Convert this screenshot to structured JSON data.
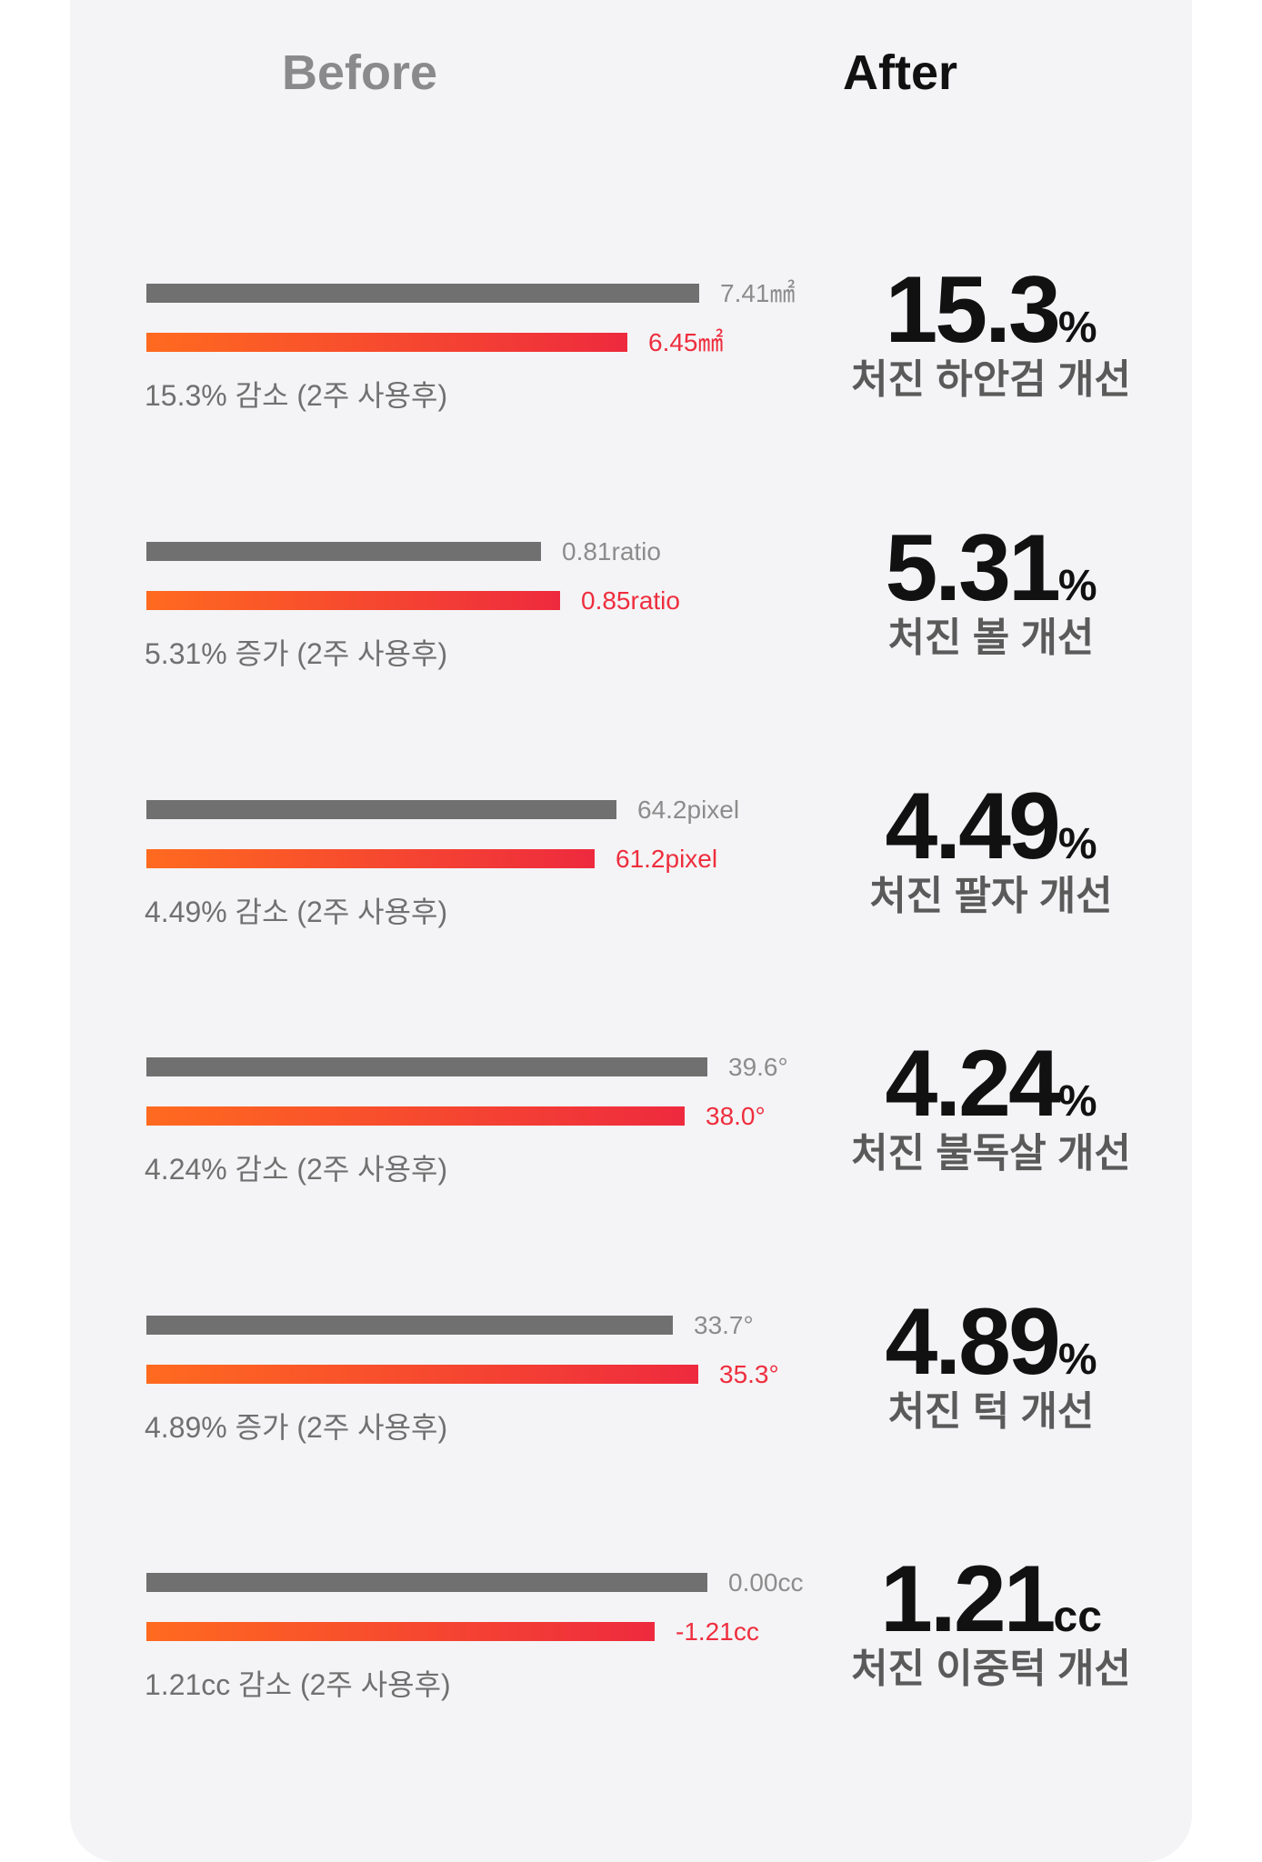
{
  "headers": {
    "before": "Before",
    "after": "After"
  },
  "colors": {
    "before_bar": "#707070",
    "after_bar_start": "#ff6a1f",
    "after_bar_end": "#ee2a3e",
    "after_value_text": "#ee2e3e"
  },
  "chart_data": {
    "type": "bar",
    "title": "",
    "rows": [
      {
        "before": 7.41,
        "after": 6.45,
        "before_label": "7.41㎟",
        "after_label": "6.45㎟",
        "caption": "15.3% 감소 (2주 사용후)",
        "big_value": "15.3",
        "big_unit": "%",
        "label": "처진 하안검 개선"
      },
      {
        "before": 0.81,
        "after": 0.85,
        "before_label": "0.81ratio",
        "after_label": "0.85ratio",
        "caption": "5.31% 증가 (2주 사용후)",
        "big_value": "5.31",
        "big_unit": "%",
        "label": "처진 볼 개선"
      },
      {
        "before": 64.2,
        "after": 61.2,
        "before_label": "64.2pixel",
        "after_label": "61.2pixel",
        "caption": "4.49% 감소 (2주 사용후)",
        "big_value": "4.49",
        "big_unit": "%",
        "label": "처진 팔자 개선"
      },
      {
        "before": 39.6,
        "after": 38.0,
        "before_label": "39.6°",
        "after_label": "38.0°",
        "caption": "4.24% 감소 (2주 사용후)",
        "big_value": "4.24",
        "big_unit": "%",
        "label": "처진 불독살 개선"
      },
      {
        "before": 33.7,
        "after": 35.3,
        "before_label": "33.7°",
        "after_label": "35.3°",
        "caption": "4.89% 증가 (2주 사용후)",
        "big_value": "4.89",
        "big_unit": "%",
        "label": "처진 턱 개선"
      },
      {
        "before": 0.0,
        "after": -1.21,
        "before_label": "0.00cc",
        "after_label": "-1.21cc",
        "caption": "1.21cc 감소 (2주 사용후)",
        "big_value": "1.21",
        "big_unit": "cc",
        "label": "처진 이중턱 개선"
      }
    ]
  }
}
